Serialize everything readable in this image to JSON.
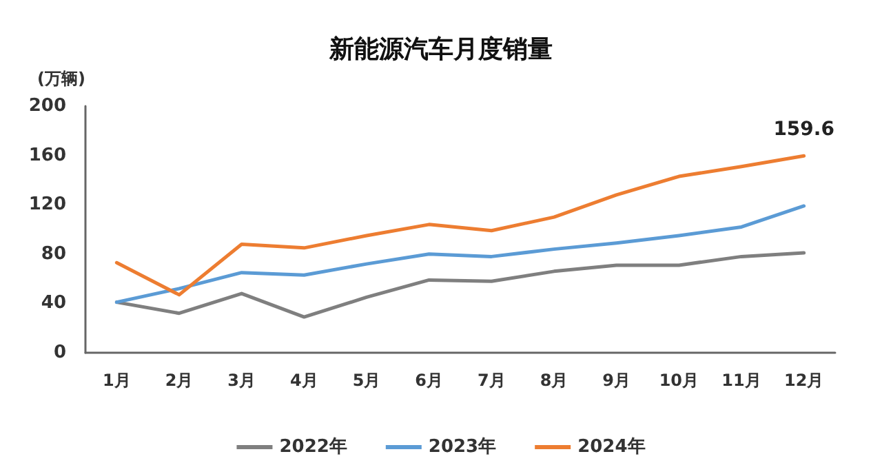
{
  "chart_data": {
    "type": "line",
    "title": "新能源汽车月度销量",
    "ylabel": "(万辆)",
    "categories": [
      "1月",
      "2月",
      "3月",
      "4月",
      "5月",
      "6月",
      "7月",
      "8月",
      "9月",
      "10月",
      "11月",
      "12月"
    ],
    "series": [
      {
        "name": "2022年",
        "color": "#7f7f7f",
        "values": [
          41,
          32,
          48,
          29,
          45,
          59,
          58,
          66,
          71,
          71,
          78,
          81
        ]
      },
      {
        "name": "2023年",
        "color": "#5b9bd5",
        "values": [
          41,
          52,
          65,
          63,
          72,
          80,
          78,
          84,
          89,
          95,
          102,
          119
        ]
      },
      {
        "name": "2024年",
        "color": "#ed7d31",
        "values": [
          73,
          47,
          88,
          85,
          95,
          104,
          99,
          110,
          128,
          143,
          151,
          159.6
        ],
        "value_labels": [
          null,
          null,
          null,
          null,
          null,
          null,
          null,
          null,
          null,
          null,
          null,
          "159.6"
        ]
      }
    ],
    "ylim": [
      0,
      200
    ],
    "yticks": [
      0,
      40,
      80,
      120,
      160,
      200
    ],
    "grid": false,
    "legend": "bottom",
    "marker": "none",
    "line_style": "solid"
  }
}
